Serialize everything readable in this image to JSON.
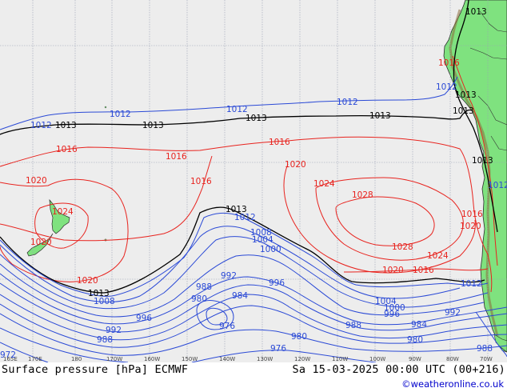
{
  "map": {
    "title": "Surface pressure [hPa] ECMWF",
    "valid_time": "Sa 15-03-2025 00:00 UTC (00+216)",
    "credit": "©weatheronline.co.uk",
    "longitude_ticks": [
      "165E",
      "170E",
      "180",
      "170W",
      "160W",
      "150W",
      "140W",
      "130W",
      "120W",
      "110W",
      "100W",
      "90W",
      "80W",
      "70W"
    ],
    "colors": {
      "ocean": "#ededed",
      "land": "#7fe27f",
      "grid": "#9aa0b4",
      "high_isobar": "#e8231e",
      "low_isobar": "#2b4ad6",
      "standard_isobar": "#000000"
    },
    "isobar_labels": [
      {
        "text": "1013",
        "kind": "std"
      },
      {
        "text": "1013",
        "kind": "std"
      },
      {
        "text": "1013",
        "kind": "std"
      },
      {
        "text": "1013",
        "kind": "std"
      },
      {
        "text": "1013",
        "kind": "std"
      },
      {
        "text": "1013",
        "kind": "std"
      },
      {
        "text": "1013",
        "kind": "std"
      },
      {
        "text": "1013",
        "kind": "std"
      },
      {
        "text": "1013",
        "kind": "std"
      },
      {
        "text": "1013",
        "kind": "std"
      },
      {
        "text": "1012",
        "kind": "low"
      },
      {
        "text": "1012",
        "kind": "low"
      },
      {
        "text": "1012",
        "kind": "low"
      },
      {
        "text": "1012",
        "kind": "low"
      },
      {
        "text": "1012",
        "kind": "low"
      },
      {
        "text": "1012",
        "kind": "low"
      },
      {
        "text": "1012",
        "kind": "low"
      },
      {
        "text": "1012",
        "kind": "low"
      },
      {
        "text": "1016",
        "kind": "high"
      },
      {
        "text": "1016",
        "kind": "high"
      },
      {
        "text": "1016",
        "kind": "high"
      },
      {
        "text": "1016",
        "kind": "high"
      },
      {
        "text": "1016",
        "kind": "high"
      },
      {
        "text": "1016",
        "kind": "high"
      },
      {
        "text": "1016",
        "kind": "high"
      },
      {
        "text": "1020",
        "kind": "high"
      },
      {
        "text": "1020",
        "kind": "high"
      },
      {
        "text": "1020",
        "kind": "high"
      },
      {
        "text": "1020",
        "kind": "high"
      },
      {
        "text": "1020",
        "kind": "high"
      },
      {
        "text": "1020",
        "kind": "high"
      },
      {
        "text": "1024",
        "kind": "high"
      },
      {
        "text": "1024",
        "kind": "high"
      },
      {
        "text": "1024",
        "kind": "high"
      },
      {
        "text": "1028",
        "kind": "high"
      },
      {
        "text": "1028",
        "kind": "high"
      },
      {
        "text": "1008",
        "kind": "low"
      },
      {
        "text": "1008",
        "kind": "low"
      },
      {
        "text": "1004",
        "kind": "low"
      },
      {
        "text": "1004",
        "kind": "low"
      },
      {
        "text": "1000",
        "kind": "low"
      },
      {
        "text": "1000",
        "kind": "low"
      },
      {
        "text": "996",
        "kind": "low"
      },
      {
        "text": "996",
        "kind": "low"
      },
      {
        "text": "996",
        "kind": "low"
      },
      {
        "text": "992",
        "kind": "low"
      },
      {
        "text": "992",
        "kind": "low"
      },
      {
        "text": "992",
        "kind": "low"
      },
      {
        "text": "988",
        "kind": "low"
      },
      {
        "text": "988",
        "kind": "low"
      },
      {
        "text": "988",
        "kind": "low"
      },
      {
        "text": "988",
        "kind": "low"
      },
      {
        "text": "984",
        "kind": "low"
      },
      {
        "text": "984",
        "kind": "low"
      },
      {
        "text": "980",
        "kind": "low"
      },
      {
        "text": "980",
        "kind": "low"
      },
      {
        "text": "980",
        "kind": "low"
      },
      {
        "text": "976",
        "kind": "low"
      },
      {
        "text": "976",
        "kind": "low"
      },
      {
        "text": "972",
        "kind": "low"
      }
    ]
  }
}
